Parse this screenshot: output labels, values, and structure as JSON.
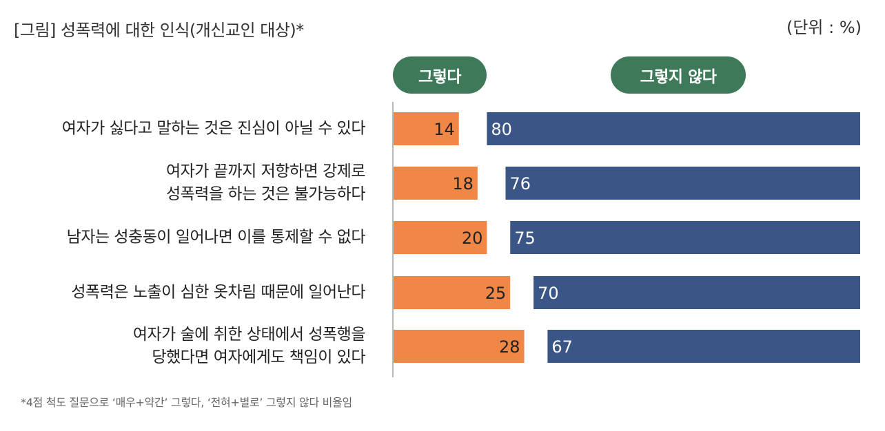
{
  "title": "[그림] 성폭력에 대한 인식(개신교인 대상)*",
  "unit": "(단위 : %)",
  "legend": {
    "agree": "그렇다",
    "disagree": "그렇지 않다"
  },
  "footnote": "*4점 척도 질문으로 ‘매우+약간’ 그렇다, ‘전혀+별로’ 그렇지 않다 비율임",
  "colors": {
    "agree": "#ef8747",
    "disagree": "#3a5687",
    "pill": "#3e7a59"
  },
  "chart_data": {
    "type": "bar",
    "orientation": "horizontal",
    "stacking": "diverging",
    "categories": [
      "여자가 싫다고 말하는 것은 진심이 아닐 수 있다",
      "여자가 끝까지 저항하면 강제로\n성폭력을 하는 것은 불가능하다",
      "남자는 성충동이 일어나면 이를 통제할 수 없다",
      "성폭력은 노출이 심한 옷차림 때문에 일어난다",
      "여자가 술에 취한 상태에서 성폭행을\n당했다면 여자에게도 책임이 있다"
    ],
    "series": [
      {
        "name": "그렇다",
        "values": [
          14,
          18,
          20,
          25,
          28
        ]
      },
      {
        "name": "그렇지 않다",
        "values": [
          80,
          76,
          75,
          70,
          67
        ]
      }
    ],
    "xlim": [
      0,
      100
    ]
  }
}
